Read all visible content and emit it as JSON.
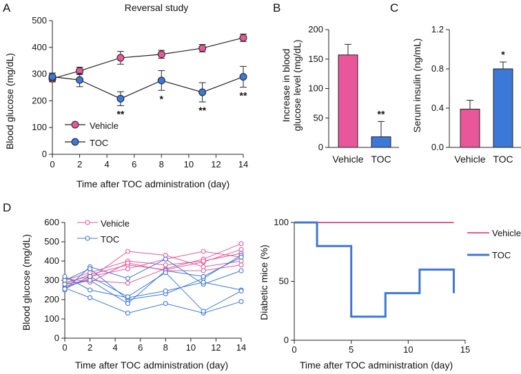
{
  "colors": {
    "vehicle": "#e8579a",
    "toc": "#3b78d8",
    "axis": "#222222"
  },
  "chart_data": [
    {
      "panel": "A",
      "type": "line",
      "title": "Reversal study",
      "xlabel": "Time after TOC administration (day)",
      "ylabel": "Blood glucose (mg/dL)",
      "xlim": [
        0,
        14
      ],
      "ylim": [
        0,
        500
      ],
      "xticks": [
        0,
        2,
        4,
        6,
        8,
        10,
        12,
        14
      ],
      "yticks": [
        0,
        100,
        200,
        300,
        400,
        500
      ],
      "series": [
        {
          "name": "Vehicle",
          "color": "#e8579a",
          "x": [
            0,
            2,
            5,
            8,
            11,
            14
          ],
          "values": [
            283,
            312,
            361,
            374,
            397,
            436
          ],
          "err": [
            12,
            14,
            24,
            15,
            14,
            14
          ]
        },
        {
          "name": "TOC",
          "color": "#3b78d8",
          "x": [
            0,
            2,
            5,
            8,
            11,
            14
          ],
          "values": [
            290,
            278,
            208,
            276,
            232,
            290
          ],
          "err": [
            14,
            25,
            26,
            37,
            36,
            39
          ]
        }
      ],
      "significance": [
        {
          "x": 5,
          "label": "**"
        },
        {
          "x": 8,
          "label": "*"
        },
        {
          "x": 11,
          "label": "**"
        },
        {
          "x": 14,
          "label": "**"
        }
      ],
      "legend": [
        "Vehicle",
        "TOC"
      ]
    },
    {
      "panel": "B",
      "type": "bar",
      "ylabel_lines": [
        "Increase in blood",
        "glucose level (mg/dL)"
      ],
      "categories": [
        "Vehicle",
        "TOC"
      ],
      "values": [
        157,
        18
      ],
      "err": [
        18,
        26
      ],
      "colors": [
        "#e8579a",
        "#3b78d8"
      ],
      "ylim": [
        0,
        200
      ],
      "yticks": [
        0,
        50,
        100,
        150,
        200
      ],
      "significance": [
        {
          "category": "TOC",
          "label": "**"
        }
      ]
    },
    {
      "panel": "C",
      "type": "bar",
      "ylabel": "Serum insulin (ng/mL)",
      "categories": [
        "Vehicle",
        "TOC"
      ],
      "values": [
        0.39,
        0.8
      ],
      "err": [
        0.09,
        0.07
      ],
      "colors": [
        "#e8579a",
        "#3b78d8"
      ],
      "ylim": [
        0,
        1.2
      ],
      "yticks": [
        "0.0",
        "0.4",
        "0.8",
        "1.2"
      ],
      "significance": [
        {
          "category": "TOC",
          "label": "*"
        }
      ]
    },
    {
      "panel": "D-left",
      "type": "line",
      "xlabel": "Time after TOC administration (day)",
      "ylabel": "Blood glucose (mg/dL)",
      "xlim": [
        0,
        14
      ],
      "ylim": [
        0,
        600
      ],
      "xticks": [
        0,
        2,
        4,
        6,
        8,
        10,
        12,
        14
      ],
      "yticks": [
        0,
        100,
        200,
        300,
        400,
        500,
        600
      ],
      "x": [
        0,
        2,
        5,
        8,
        11,
        14
      ],
      "groups": [
        {
          "name": "Vehicle",
          "color": "#e8579a",
          "series": [
            [
              270,
              300,
              285,
              360,
              410,
              490
            ],
            [
              280,
              330,
              380,
              355,
              395,
              460
            ],
            [
              300,
              340,
              400,
              380,
              400,
              440
            ],
            [
              290,
              320,
              360,
              410,
              450,
              420
            ],
            [
              260,
              310,
              450,
              430,
              370,
              400
            ],
            [
              310,
              290,
              390,
              350,
              350,
              380
            ]
          ]
        },
        {
          "name": "TOC",
          "color": "#3b78d8",
          "series": [
            [
              250,
              370,
              310,
              410,
              280,
              350
            ],
            [
              300,
              360,
              200,
              230,
              310,
              430
            ],
            [
              280,
              300,
              180,
              350,
              320,
              420
            ],
            [
              320,
              250,
              210,
              245,
              290,
              250
            ],
            [
              260,
              210,
              130,
              180,
              130,
              190
            ],
            [
              255,
              320,
              215,
              340,
              140,
              245
            ]
          ]
        }
      ],
      "legend": [
        "Vehicle",
        "TOC"
      ]
    },
    {
      "panel": "D-right",
      "type": "line",
      "step": true,
      "xlabel": "Time after TOC administration (day)",
      "ylabel": "Diabetic mice (%)",
      "xlim": [
        0,
        15
      ],
      "ylim": [
        0,
        100
      ],
      "xticks": [
        0,
        5,
        10,
        15
      ],
      "yticks": [
        0,
        50,
        100
      ],
      "series": [
        {
          "name": "Vehicle",
          "color": "#e8579a",
          "x": [
            0,
            14
          ],
          "values": [
            100,
            100
          ]
        },
        {
          "name": "TOC",
          "color": "#3b78d8",
          "x": [
            0,
            2,
            2,
            5,
            5,
            8,
            8,
            11,
            11,
            14,
            14
          ],
          "values": [
            100,
            100,
            80,
            80,
            20,
            20,
            40,
            40,
            60,
            60,
            40
          ]
        }
      ],
      "legend": [
        "Vehicle",
        "TOC"
      ]
    }
  ]
}
